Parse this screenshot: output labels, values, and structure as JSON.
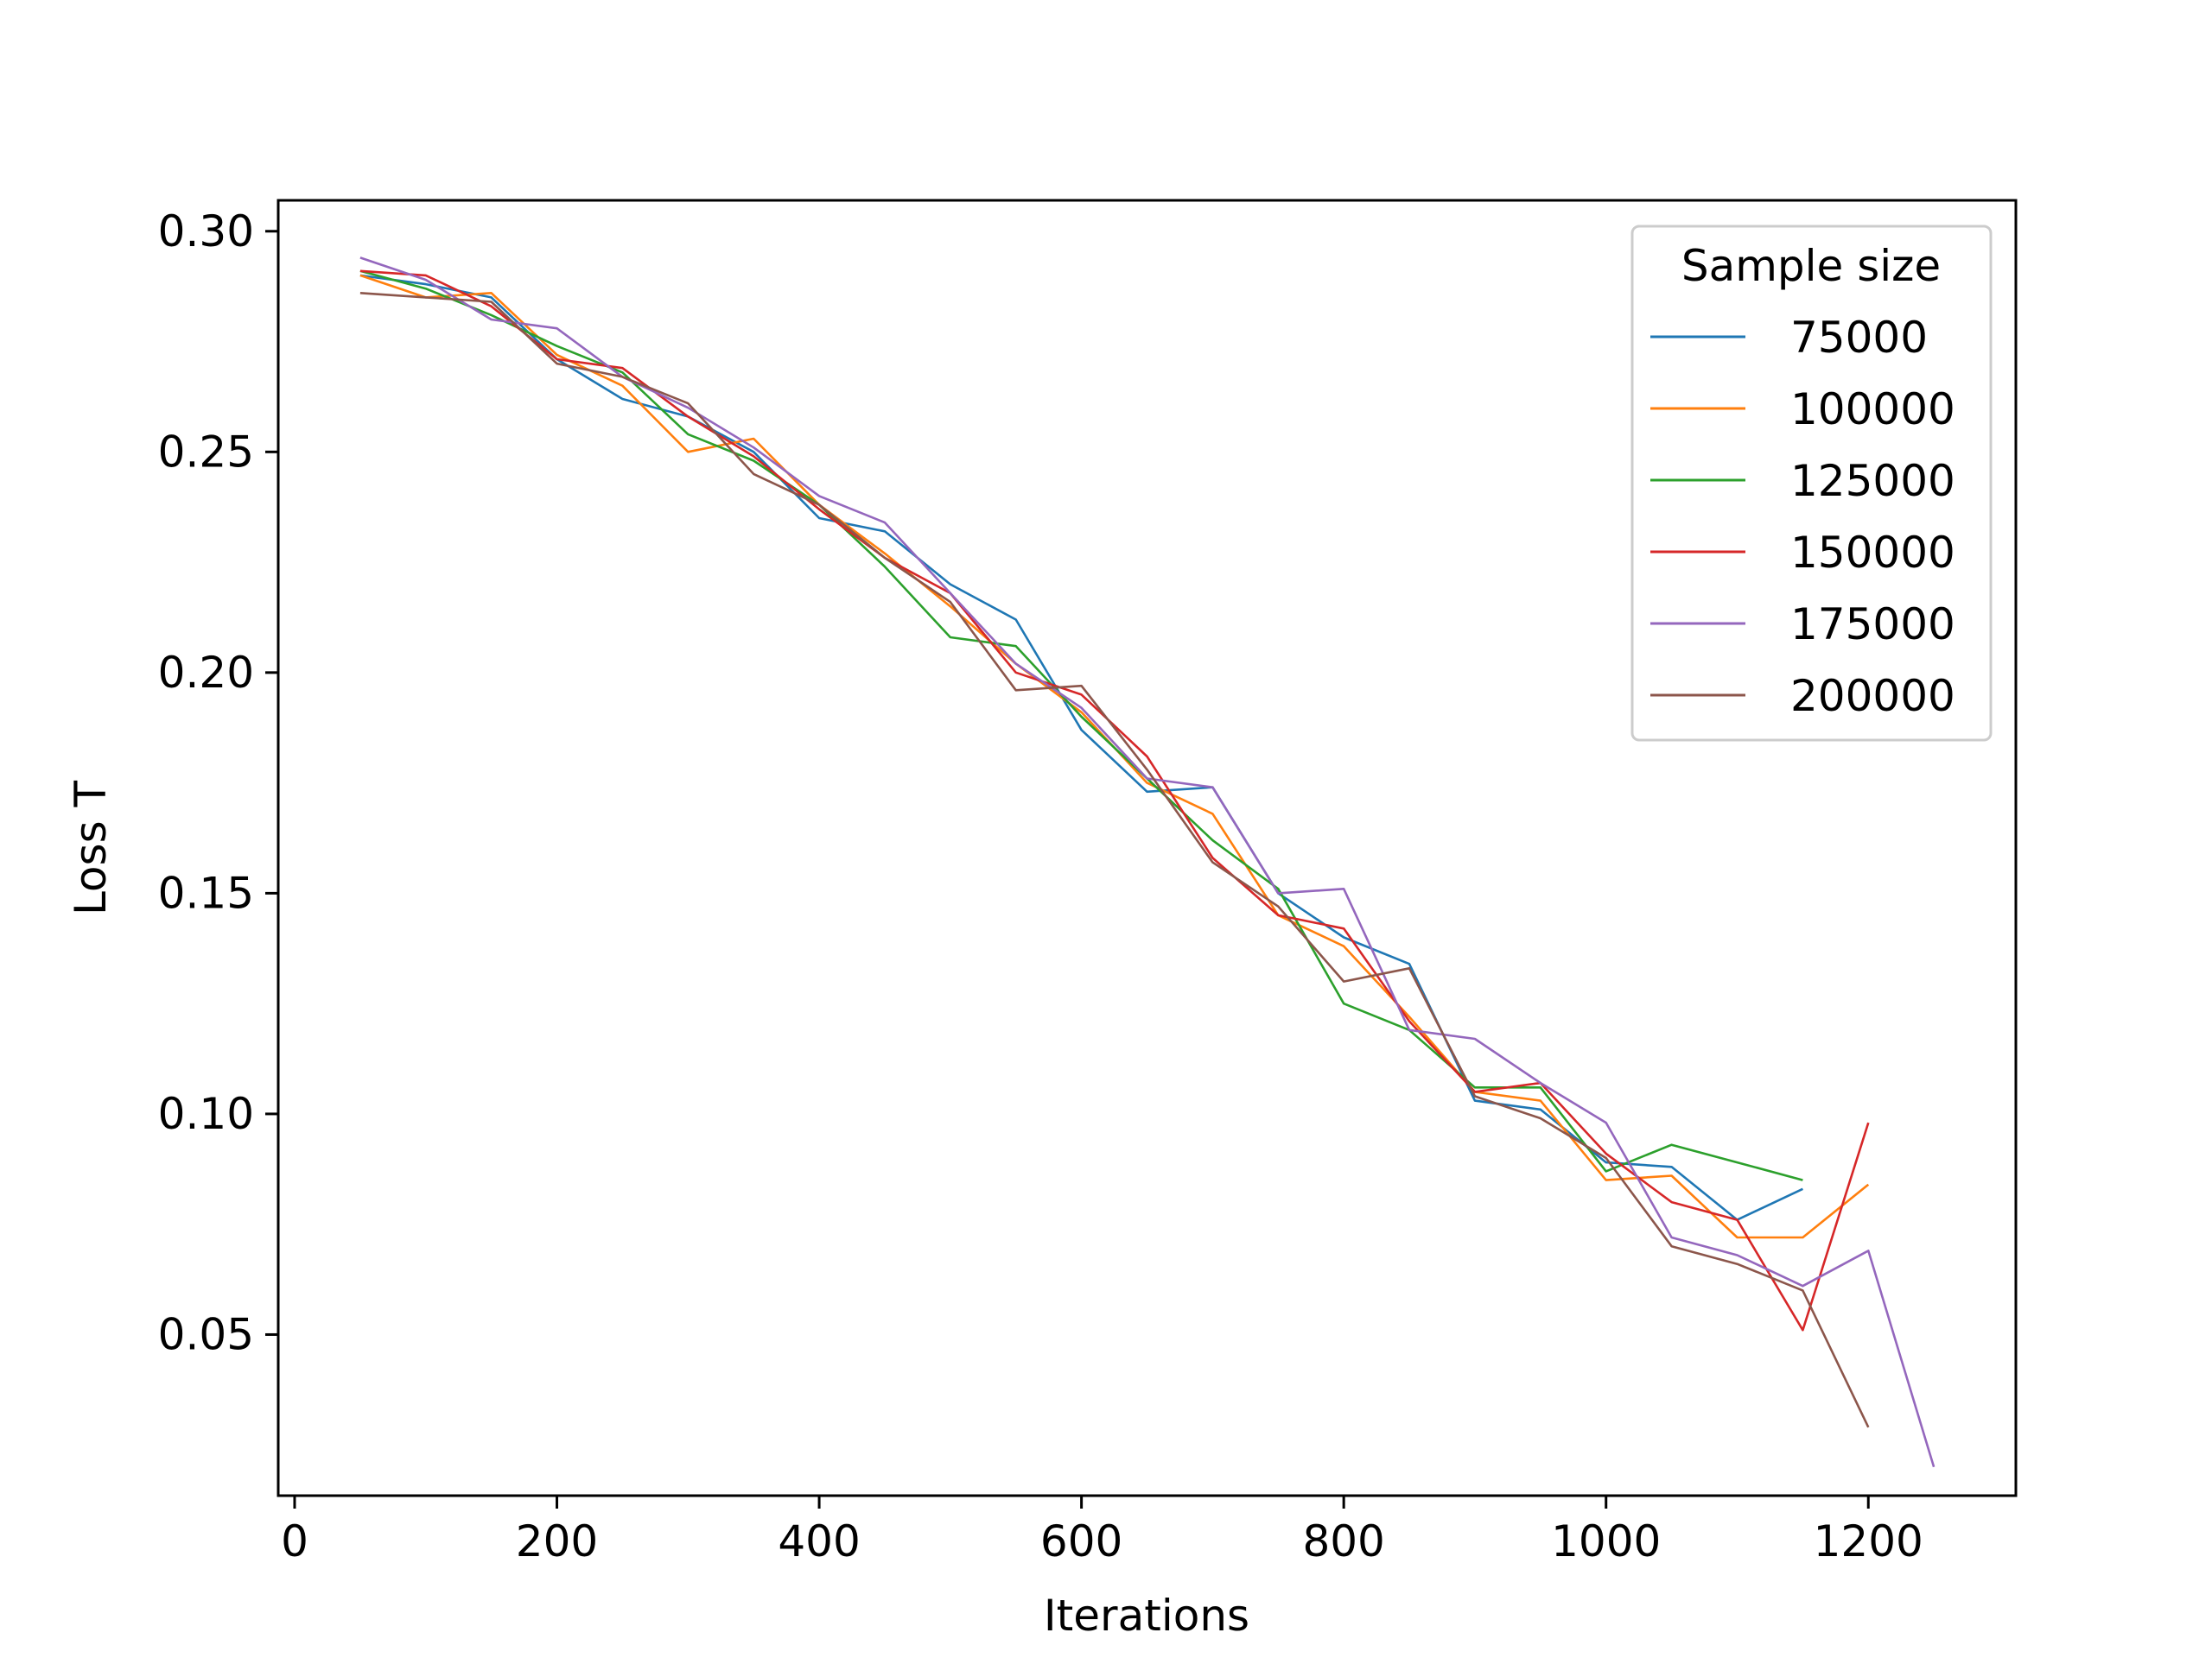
{
  "chart_data": {
    "type": "line",
    "title": "",
    "xlabel": "Iterations",
    "ylabel": "Loss T",
    "xlim": [
      -12.5,
      1312.5
    ],
    "ylim": [
      0.0135,
      0.307
    ],
    "xticks": [
      0,
      200,
      400,
      600,
      800,
      1000,
      1200
    ],
    "xtick_labels": [
      "0",
      "200",
      "400",
      "600",
      "800",
      "1000",
      "1200"
    ],
    "yticks": [
      0.05,
      0.1,
      0.15,
      0.2,
      0.25,
      0.3
    ],
    "ytick_labels": [
      "0.05",
      "0.10",
      "0.15",
      "0.20",
      "0.25",
      "0.30"
    ],
    "grid": false,
    "legend": {
      "title": "Sample size",
      "position": "top-right"
    },
    "series": [
      {
        "name": "75000",
        "color": "#1f77b4",
        "x": [
          50,
          100,
          150,
          200,
          250,
          300,
          350,
          400,
          450,
          500,
          550,
          600,
          650,
          700,
          750,
          800,
          850,
          900,
          950,
          1000,
          1050,
          1100,
          1150
        ],
        "y": [
          0.29,
          0.288,
          0.285,
          0.271,
          0.262,
          0.258,
          0.25,
          0.235,
          0.232,
          0.22,
          0.212,
          0.187,
          0.173,
          0.174,
          0.15,
          0.14,
          0.134,
          0.103,
          0.101,
          0.089,
          0.088,
          0.076,
          0.083
        ]
      },
      {
        "name": "100000",
        "color": "#ff7f0e",
        "x": [
          50,
          100,
          150,
          200,
          250,
          300,
          350,
          400,
          450,
          500,
          550,
          600,
          650,
          700,
          750,
          800,
          850,
          900,
          950,
          1000,
          1050,
          1100,
          1150,
          1200
        ],
        "y": [
          0.29,
          0.285,
          0.286,
          0.272,
          0.265,
          0.25,
          0.253,
          0.238,
          0.227,
          0.215,
          0.202,
          0.191,
          0.175,
          0.168,
          0.145,
          0.138,
          0.122,
          0.105,
          0.103,
          0.085,
          0.086,
          0.072,
          0.072,
          0.084
        ]
      },
      {
        "name": "125000",
        "color": "#2ca02c",
        "x": [
          50,
          100,
          150,
          200,
          250,
          300,
          350,
          400,
          450,
          500,
          550,
          600,
          650,
          700,
          750,
          800,
          850,
          900,
          950,
          1000,
          1050,
          1100,
          1150
        ],
        "y": [
          0.291,
          0.287,
          0.281,
          0.274,
          0.268,
          0.254,
          0.248,
          0.238,
          0.224,
          0.208,
          0.206,
          0.19,
          0.176,
          0.162,
          0.151,
          0.125,
          0.119,
          0.106,
          0.106,
          0.087,
          0.093,
          0.089,
          0.085
        ]
      },
      {
        "name": "150000",
        "color": "#d62728",
        "x": [
          50,
          100,
          150,
          200,
          250,
          300,
          350,
          400,
          450,
          500,
          550,
          600,
          650,
          700,
          750,
          800,
          850,
          900,
          950,
          1000,
          1050,
          1100,
          1150,
          1200
        ],
        "y": [
          0.291,
          0.29,
          0.283,
          0.271,
          0.269,
          0.258,
          0.249,
          0.237,
          0.226,
          0.218,
          0.2,
          0.195,
          0.181,
          0.158,
          0.145,
          0.142,
          0.121,
          0.105,
          0.107,
          0.091,
          0.08,
          0.076,
          0.051,
          0.098
        ]
      },
      {
        "name": "175000",
        "color": "#9467bd",
        "x": [
          50,
          100,
          150,
          200,
          250,
          300,
          350,
          400,
          450,
          500,
          550,
          600,
          650,
          700,
          750,
          800,
          850,
          900,
          950,
          1000,
          1050,
          1100,
          1150,
          1200,
          1250
        ],
        "y": [
          0.294,
          0.289,
          0.28,
          0.278,
          0.267,
          0.26,
          0.251,
          0.24,
          0.234,
          0.218,
          0.202,
          0.192,
          0.176,
          0.174,
          0.15,
          0.151,
          0.119,
          0.117,
          0.107,
          0.098,
          0.072,
          0.068,
          0.061,
          0.069,
          0.02
        ]
      },
      {
        "name": "200000",
        "color": "#8c564b",
        "x": [
          50,
          100,
          150,
          200,
          250,
          300,
          350,
          400,
          450,
          500,
          550,
          600,
          650,
          700,
          750,
          800,
          850,
          900,
          950,
          1000,
          1050,
          1100,
          1150,
          1200
        ],
        "y": [
          0.286,
          0.285,
          0.284,
          0.27,
          0.267,
          0.261,
          0.245,
          0.238,
          0.226,
          0.216,
          0.196,
          0.197,
          0.178,
          0.157,
          0.147,
          0.13,
          0.133,
          0.104,
          0.099,
          0.09,
          0.07,
          0.066,
          0.06,
          0.029
        ]
      }
    ]
  }
}
